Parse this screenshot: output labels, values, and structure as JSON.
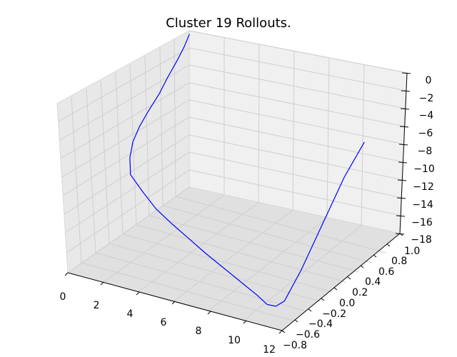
{
  "chart_data": {
    "type": "line",
    "projection": "3d",
    "title": "Cluster 19 Rollouts.",
    "xlabel": "",
    "ylabel": "",
    "zlabel": "",
    "xlim": [
      0,
      12
    ],
    "ylim": [
      -0.8,
      1.0
    ],
    "zlim": [
      -18,
      0
    ],
    "x_ticks": [
      "0",
      "2",
      "4",
      "6",
      "8",
      "10",
      "12"
    ],
    "y_ticks": [
      "−0.8",
      "−0.6",
      "−0.4",
      "−0.2",
      "0.0",
      "0.2",
      "0.4",
      "0.6",
      "0.8",
      "1.0"
    ],
    "z_ticks": [
      "0",
      "−2",
      "−4",
      "−6",
      "−8",
      "−10",
      "−12",
      "−14",
      "−16",
      "−18"
    ],
    "grid": true,
    "series": [
      {
        "color": "#0000ff",
        "x": [
          0.2,
          0.3,
          0.4,
          0.5,
          0.6,
          0.7,
          0.8,
          1.0,
          1.4,
          2.0,
          3.0,
          4.0,
          5.0,
          6.0,
          7.0,
          8.0,
          9.0,
          10.0,
          10.6,
          10.9,
          11.0,
          10.8,
          10.5,
          10.2,
          10.0
        ],
        "y": [
          0.95,
          0.85,
          0.72,
          0.55,
          0.4,
          0.2,
          0.05,
          -0.1,
          -0.25,
          -0.4,
          -0.48,
          -0.55,
          -0.58,
          -0.6,
          -0.62,
          -0.63,
          -0.64,
          -0.65,
          -0.65,
          -0.6,
          -0.5,
          -0.2,
          0.2,
          0.6,
          0.95
        ],
        "z": [
          0.0,
          -0.8,
          -1.6,
          -2.6,
          -3.6,
          -4.6,
          -5.4,
          -6.2,
          -7.0,
          -7.8,
          -8.8,
          -9.8,
          -10.8,
          -11.8,
          -12.8,
          -13.8,
          -14.8,
          -15.8,
          -16.6,
          -16.9,
          -16.8,
          -15.0,
          -12.0,
          -9.0,
          -7.0
        ]
      }
    ]
  }
}
